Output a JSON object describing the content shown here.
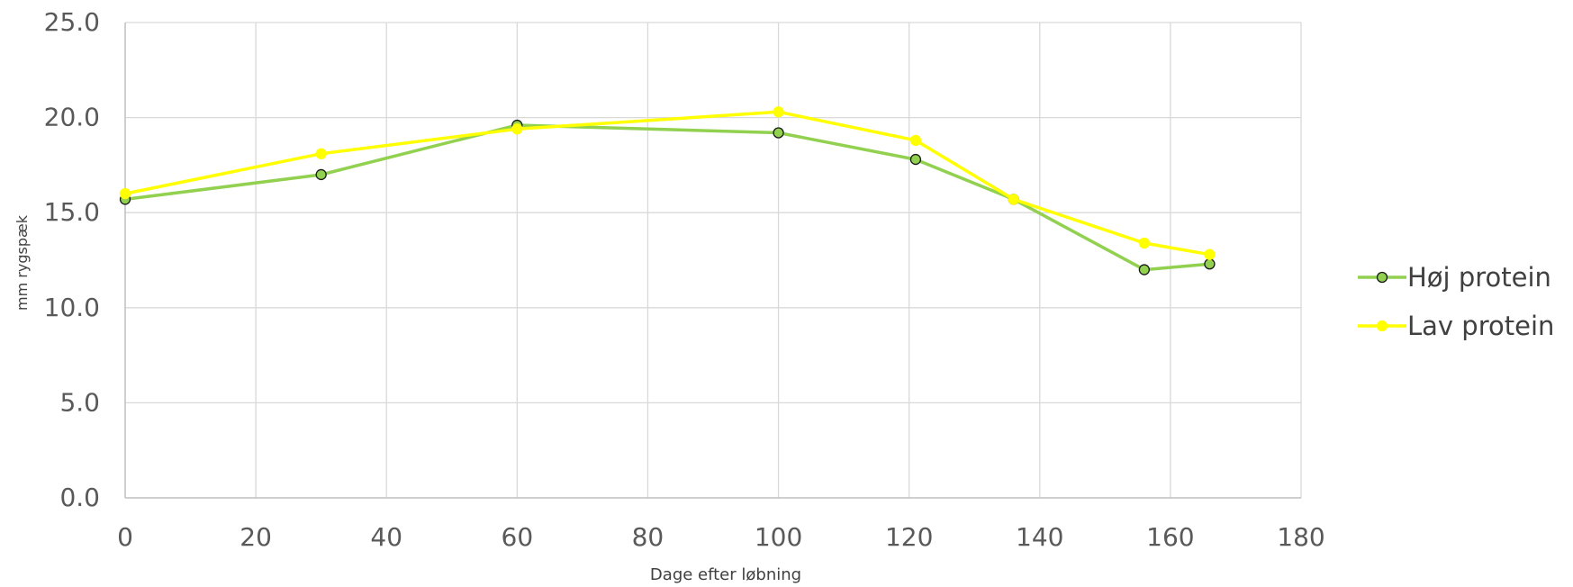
{
  "chart_data": {
    "type": "line",
    "title": "",
    "xlabel": "Dage efter løbning",
    "ylabel": "mm rygspæk",
    "xlim": [
      0,
      180
    ],
    "ylim": [
      0,
      25
    ],
    "x_ticks": [
      "0",
      "20",
      "40",
      "60",
      "80",
      "100",
      "120",
      "140",
      "160",
      "180"
    ],
    "y_ticks": [
      "0.0",
      "5.0",
      "10.0",
      "15.0",
      "20.0",
      "25.0"
    ],
    "grid": true,
    "legend_position": "right",
    "series": [
      {
        "name": "Høj protein",
        "color": "#92d050",
        "marker_edge": "#1a1a1a",
        "x": [
          0,
          30,
          60,
          100,
          121,
          136,
          156,
          166
        ],
        "y": [
          15.7,
          17.0,
          19.6,
          19.2,
          17.8,
          15.7,
          12.0,
          12.3
        ]
      },
      {
        "name": "Lav protein",
        "color": "#ffff00",
        "marker_edge": "#ffff00",
        "x": [
          0,
          30,
          60,
          100,
          121,
          136,
          156,
          166
        ],
        "y": [
          16.0,
          18.1,
          19.4,
          20.3,
          18.8,
          15.7,
          13.4,
          12.8
        ]
      }
    ]
  }
}
